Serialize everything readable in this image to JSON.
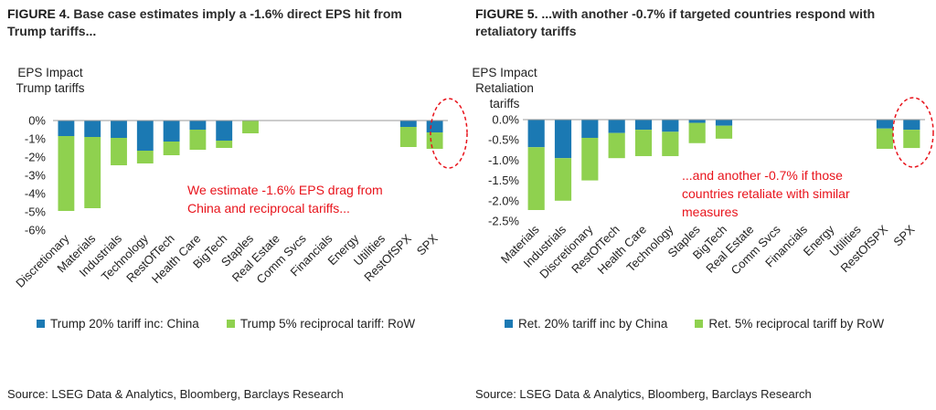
{
  "colors": {
    "china": "#1b79b3",
    "row": "#8fd14f",
    "annotation": "#e8131b",
    "axis": "#9a9a9a"
  },
  "figures": [
    {
      "number": "FIGURE 4.",
      "title": "Base case estimates imply a -1.6% direct EPS hit from Trump tariffs...",
      "source": "Source: LSEG Data & Analytics, Bloomberg, Barclays Research",
      "legend": [
        "Trump 20% tariff inc: China",
        "Trump 5% reciprocal tariff: RoW"
      ],
      "annotation": [
        "We estimate -1.6% EPS drag from",
        "China and reciprocal tariffs..."
      ]
    },
    {
      "number": "FIGURE 5.",
      "title": "...with another -0.7% if targeted countries respond with retaliatory tariffs",
      "source": "Source: LSEG Data & Analytics, Bloomberg, Barclays Research",
      "legend": [
        "Ret. 20% tariff inc by China",
        "Ret. 5% reciprocal tariff by RoW"
      ],
      "annotation": [
        "...and another -0.7% if those",
        "countries retaliate with similar",
        "measures"
      ]
    }
  ],
  "chart_data": [
    {
      "type": "bar",
      "stacked": true,
      "ylabel": [
        "EPS Impact",
        "Trump tariffs"
      ],
      "ylim": [
        -6,
        0
      ],
      "yticks": [
        0,
        -1,
        -2,
        -3,
        -4,
        -5,
        -6
      ],
      "ytick_labels": [
        "0%",
        "-1%",
        "-2%",
        "-3%",
        "-4%",
        "-5%",
        "-6%"
      ],
      "categories": [
        "Discretionary",
        "Materials",
        "Industrials",
        "Technology",
        "RestOfTech",
        "Health Care",
        "BigTech",
        "Staples",
        "Real Estate",
        "Comm Svcs",
        "Financials",
        "Energy",
        "Utilities",
        "RestOfSPX",
        "SPX"
      ],
      "series": [
        {
          "name": "Trump 20% tariff inc: China",
          "values": [
            -0.85,
            -0.9,
            -0.95,
            -1.65,
            -1.15,
            -0.5,
            -1.1,
            0,
            0,
            0,
            0,
            0,
            0,
            -0.35,
            -0.65
          ]
        },
        {
          "name": "Trump 5% reciprocal tariff: RoW",
          "values": [
            -4.1,
            -3.9,
            -1.5,
            -0.7,
            -0.75,
            -1.1,
            -0.4,
            -0.7,
            0,
            0,
            0,
            0,
            0,
            -1.1,
            -0.9
          ]
        }
      ],
      "legend_position": "bottom",
      "grid": false,
      "highlight": "SPX"
    },
    {
      "type": "bar",
      "stacked": true,
      "ylabel": [
        "EPS Impact",
        "Retaliation",
        "tariffs"
      ],
      "ylim": [
        -2.5,
        0
      ],
      "yticks": [
        0,
        -0.5,
        -1,
        -1.5,
        -2,
        -2.5
      ],
      "ytick_labels": [
        "0.0%",
        "-0.5%",
        "-1.0%",
        "-1.5%",
        "-2.0%",
        "-2.5%"
      ],
      "categories": [
        "Materials",
        "Industrials",
        "Discretionary",
        "RestOfTech",
        "Health Care",
        "Technology",
        "Staples",
        "BigTech",
        "Real Estate",
        "Comm Svcs",
        "Financials",
        "Energy",
        "Utilities",
        "RestOfSPX",
        "SPX"
      ],
      "series": [
        {
          "name": "Ret. 20% tariff inc by China",
          "values": [
            -0.68,
            -0.95,
            -0.45,
            -0.33,
            -0.25,
            -0.3,
            -0.08,
            -0.15,
            0,
            0,
            0,
            0,
            0,
            -0.22,
            -0.25
          ]
        },
        {
          "name": "Ret. 5% reciprocal tariff by RoW",
          "values": [
            -1.55,
            -1.05,
            -1.05,
            -0.62,
            -0.65,
            -0.6,
            -0.5,
            -0.32,
            0,
            0,
            0,
            0,
            0,
            -0.5,
            -0.45
          ]
        }
      ],
      "legend_position": "bottom",
      "grid": false,
      "highlight": "SPX"
    }
  ]
}
